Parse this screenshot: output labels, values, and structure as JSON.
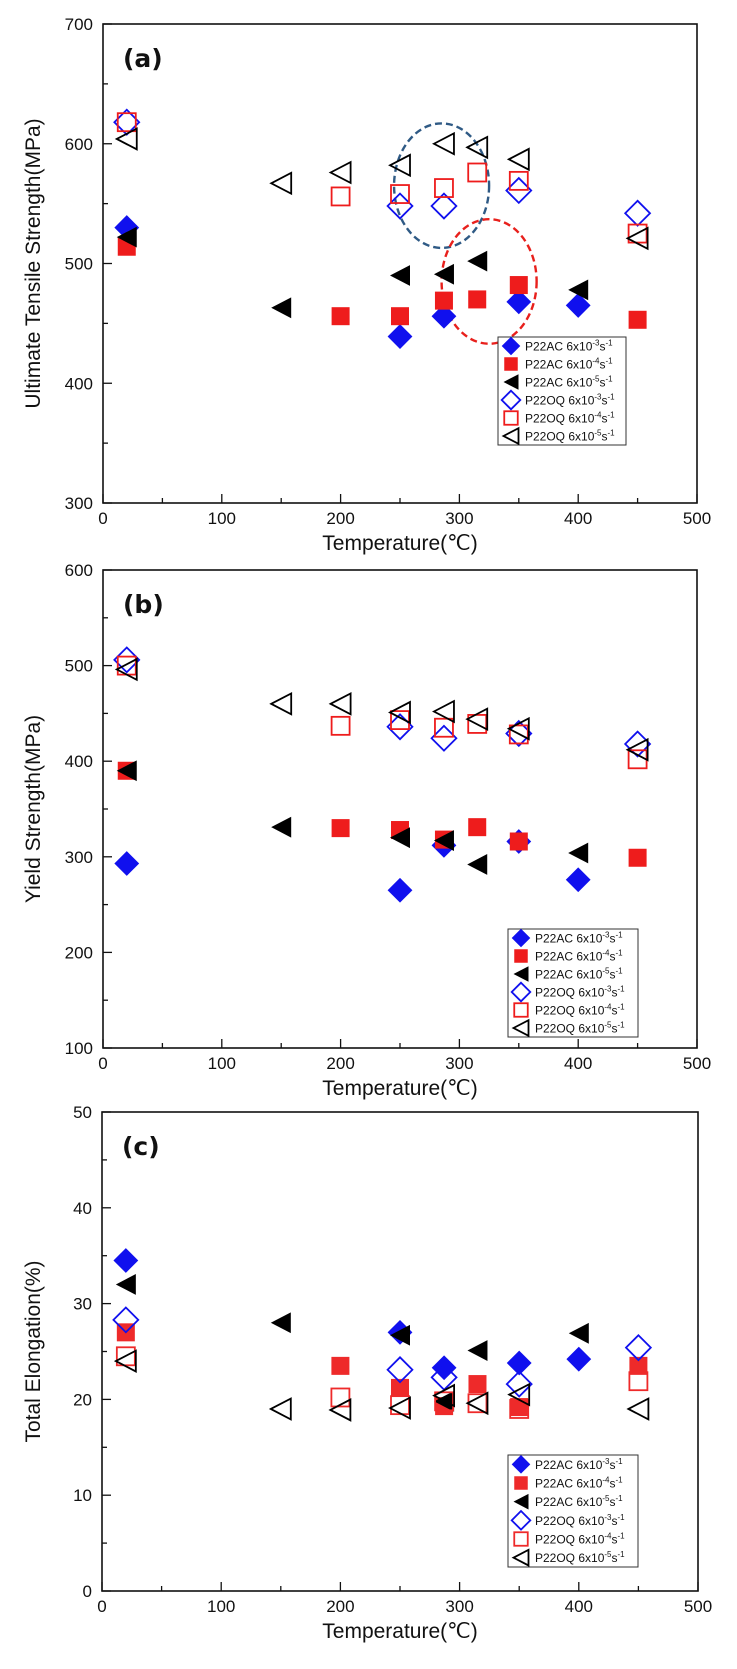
{
  "chart_data": [
    {
      "type": "scatter",
      "panel_label": "(a)",
      "title": "",
      "xlabel": "Temperature(℃)",
      "ylabel": "Ultimate Tensile Strength(MPa)",
      "xlim": [
        0,
        500
      ],
      "ylim": [
        300,
        700
      ],
      "xticks": [
        "0",
        "100",
        "200",
        "300",
        "400",
        "500"
      ],
      "yticks": [
        "300",
        "400",
        "500",
        "600",
        "700"
      ],
      "grid": false,
      "legend_position": "bottom-right",
      "annotations": [
        {
          "type": "dashed-ellipse",
          "color": "#2f5a85",
          "center": [
            285,
            565
          ],
          "radius": [
            40,
            52
          ]
        },
        {
          "type": "dashed-ellipse",
          "color": "#e8201c",
          "center": [
            325,
            485
          ],
          "radius": [
            40,
            52
          ]
        }
      ],
      "series": [
        {
          "name": "P22AC 6x10-3s-1",
          "base": "P22AC 6x10",
          "exp": "-3",
          "marker": "diamond",
          "filled": true,
          "color": "#1010ee",
          "x": [
            20,
            250,
            287,
            350,
            400
          ],
          "y": [
            530,
            439,
            456,
            468,
            465
          ]
        },
        {
          "name": "P22AC 6x10-4s-1",
          "base": "P22AC 6x10",
          "exp": "-4",
          "marker": "square",
          "filled": true,
          "color": "#ee1c1c",
          "x": [
            20,
            200,
            250,
            287,
            315,
            350,
            450
          ],
          "y": [
            514,
            456,
            456,
            469,
            470,
            482,
            453
          ]
        },
        {
          "name": "P22AC 6x10-5s-1",
          "base": "P22AC 6x10",
          "exp": "-5",
          "marker": "triangle-left",
          "filled": true,
          "color": "#000000",
          "x": [
            20,
            150,
            250,
            287,
            315,
            400
          ],
          "y": [
            522,
            463,
            490,
            491,
            502,
            478
          ]
        },
        {
          "name": "P22OQ 6x10-3s-1",
          "base": "P22OQ 6x10",
          "exp": "-3",
          "marker": "diamond",
          "filled": false,
          "color": "#1010ee",
          "x": [
            20,
            250,
            287,
            350,
            450
          ],
          "y": [
            618,
            548,
            548,
            561,
            542
          ]
        },
        {
          "name": "P22OQ 6x10-4s-1",
          "base": "P22OQ 6x10",
          "exp": "-4",
          "marker": "square",
          "filled": false,
          "color": "#ee1c1c",
          "x": [
            20,
            200,
            250,
            287,
            315,
            350,
            450
          ],
          "y": [
            618,
            556,
            558,
            563,
            576,
            569,
            525
          ]
        },
        {
          "name": "P22OQ 6x10-5s-1",
          "base": "P22OQ 6x10",
          "exp": "-5",
          "marker": "triangle-left",
          "filled": false,
          "color": "#000000",
          "x": [
            20,
            150,
            200,
            250,
            287,
            315,
            350,
            450
          ],
          "y": [
            604,
            567,
            576,
            582,
            600,
            597,
            587,
            521
          ]
        }
      ]
    },
    {
      "type": "scatter",
      "panel_label": "(b)",
      "title": "",
      "xlabel": "Temperature(℃)",
      "ylabel": "Yield Strength(MPa)",
      "xlim": [
        0,
        500
      ],
      "ylim": [
        100,
        600
      ],
      "xticks": [
        "0",
        "100",
        "200",
        "300",
        "400",
        "500"
      ],
      "yticks": [
        "100",
        "200",
        "300",
        "400",
        "500",
        "600"
      ],
      "grid": false,
      "legend_position": "bottom-right",
      "annotations": [],
      "series": [
        {
          "name": "P22AC 6x10-3s-1",
          "base": "P22AC 6x10",
          "exp": "-3",
          "marker": "diamond",
          "filled": true,
          "color": "#1010ee",
          "x": [
            20,
            250,
            287,
            350,
            400
          ],
          "y": [
            293,
            265,
            312,
            316,
            276
          ]
        },
        {
          "name": "P22AC 6x10-4s-1",
          "base": "P22AC 6x10",
          "exp": "-4",
          "marker": "square",
          "filled": true,
          "color": "#ee1c1c",
          "x": [
            20,
            200,
            250,
            287,
            315,
            350,
            450
          ],
          "y": [
            390,
            330,
            328,
            318,
            331,
            316,
            299
          ]
        },
        {
          "name": "P22AC 6x10-5s-1",
          "base": "P22AC 6x10",
          "exp": "-5",
          "marker": "triangle-left",
          "filled": true,
          "color": "#000000",
          "x": [
            20,
            150,
            250,
            287,
            315,
            400
          ],
          "y": [
            390,
            331,
            320,
            317,
            292,
            304
          ]
        },
        {
          "name": "P22OQ 6x10-3s-1",
          "base": "P22OQ 6x10",
          "exp": "-3",
          "marker": "diamond",
          "filled": false,
          "color": "#1010ee",
          "x": [
            20,
            250,
            287,
            350,
            450
          ],
          "y": [
            506,
            436,
            424,
            429,
            418
          ]
        },
        {
          "name": "P22OQ 6x10-4s-1",
          "base": "P22OQ 6x10",
          "exp": "-4",
          "marker": "square",
          "filled": false,
          "color": "#ee1c1c",
          "x": [
            20,
            200,
            250,
            287,
            315,
            350,
            450
          ],
          "y": [
            500,
            437,
            443,
            435,
            439,
            428,
            402
          ]
        },
        {
          "name": "P22OQ 6x10-5s-1",
          "base": "P22OQ 6x10",
          "exp": "-5",
          "marker": "triangle-left",
          "filled": false,
          "color": "#000000",
          "x": [
            20,
            150,
            200,
            250,
            287,
            315,
            350,
            450
          ],
          "y": [
            496,
            460,
            460,
            451,
            452,
            444,
            434,
            412
          ]
        }
      ]
    },
    {
      "type": "scatter",
      "panel_label": "(c)",
      "title": "",
      "xlabel": "Temperature(℃)",
      "ylabel": "Total Elongation(%)",
      "xlim": [
        0,
        500
      ],
      "ylim": [
        0,
        50
      ],
      "xticks": [
        "0",
        "100",
        "200",
        "300",
        "400",
        "500"
      ],
      "yticks": [
        "0",
        "10",
        "20",
        "30",
        "40",
        "50"
      ],
      "grid": false,
      "legend_position": "bottom-right",
      "annotations": [],
      "series": [
        {
          "name": "P22AC 6x10-3s-1",
          "base": "P22AC 6x10",
          "exp": "-3",
          "marker": "diamond",
          "filled": true,
          "color": "#1010ee",
          "x": [
            20,
            250,
            287,
            350,
            400
          ],
          "y": [
            34.5,
            27.0,
            23.3,
            23.8,
            24.2
          ]
        },
        {
          "name": "P22AC 6x10-4s-1",
          "base": "P22AC 6x10",
          "exp": "-4",
          "marker": "square",
          "filled": true,
          "color": "#ee2a2a",
          "x": [
            20,
            200,
            250,
            287,
            315,
            350,
            450
          ],
          "y": [
            27.0,
            23.5,
            21.2,
            19.3,
            21.6,
            19.2,
            23.5
          ]
        },
        {
          "name": "P22AC 6x10-5s-1",
          "base": "P22AC 6x10",
          "exp": "-5",
          "marker": "triangle-left",
          "filled": true,
          "color": "#000000",
          "x": [
            20,
            150,
            250,
            287,
            315,
            400
          ],
          "y": [
            32.0,
            28.0,
            26.7,
            19.8,
            25.1,
            26.9
          ]
        },
        {
          "name": "P22OQ 6x10-3s-1",
          "base": "P22OQ 6x10",
          "exp": "-3",
          "marker": "diamond",
          "filled": false,
          "color": "#1010ee",
          "x": [
            20,
            250,
            287,
            350,
            450
          ],
          "y": [
            28.3,
            23.1,
            22.3,
            21.6,
            25.4
          ]
        },
        {
          "name": "P22OQ 6x10-4s-1",
          "base": "P22OQ 6x10",
          "exp": "-4",
          "marker": "square",
          "filled": false,
          "color": "#ee2a2a",
          "x": [
            20,
            200,
            250,
            287,
            315,
            350,
            450
          ],
          "y": [
            24.5,
            20.2,
            19.4,
            19.8,
            19.6,
            19.0,
            21.9
          ]
        },
        {
          "name": "P22OQ 6x10-5s-1",
          "base": "P22OQ 6x10",
          "exp": "-5",
          "marker": "triangle-left",
          "filled": false,
          "color": "#000000",
          "x": [
            20,
            150,
            200,
            250,
            287,
            315,
            350,
            450
          ],
          "y": [
            24.0,
            19.0,
            18.9,
            19.1,
            20.4,
            19.6,
            20.5,
            19.0
          ]
        }
      ]
    }
  ],
  "legend_suffix": "s",
  "legend_suffix_exp": "-1"
}
